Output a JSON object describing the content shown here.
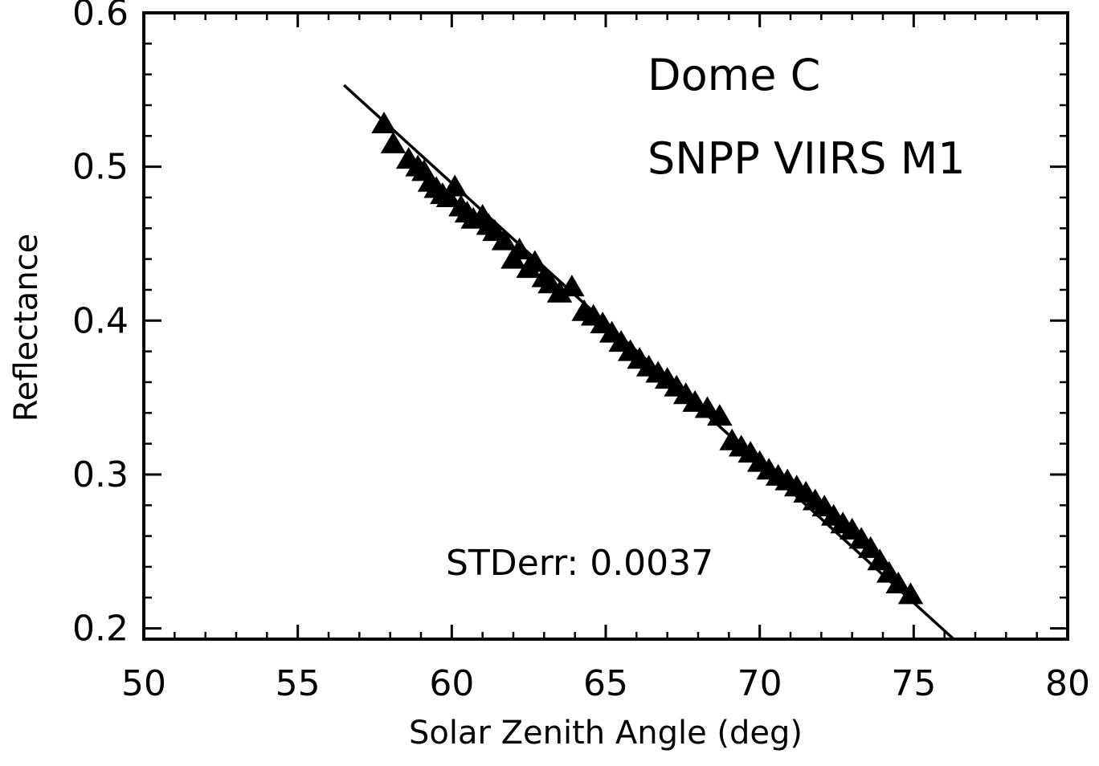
{
  "chart_data": {
    "type": "scatter",
    "xlabel": "Solar Zenith Angle (deg)",
    "ylabel": "Reflectance",
    "xlim": [
      50,
      80
    ],
    "ylim": [
      0.193,
      0.6
    ],
    "x_ticks": [
      50,
      55,
      60,
      65,
      70,
      75,
      80
    ],
    "x_tick_labels": [
      "50",
      "55",
      "60",
      "65",
      "70",
      "75",
      "80"
    ],
    "y_ticks": [
      0.2,
      0.3,
      0.4,
      0.5,
      0.6
    ],
    "y_tick_labels": [
      "0.2",
      "0.3",
      "0.4",
      "0.5",
      "0.6"
    ],
    "grid": false,
    "annotations": {
      "site": "Dome C",
      "sensor": "SNPP VIIRS M1",
      "stderr": "STDerr: 0.0037"
    },
    "series": [
      {
        "marker": "triangle",
        "color": "#000000",
        "x": [
          57.8,
          58.1,
          58.6,
          58.9,
          59.1,
          59.3,
          59.5,
          59.7,
          59.9,
          60.1,
          60.3,
          60.5,
          60.7,
          61.0,
          61.2,
          61.4,
          61.7,
          62.0,
          62.2,
          62.5,
          62.7,
          63.0,
          63.2,
          63.5,
          63.9,
          64.3,
          64.6,
          64.9,
          65.2,
          65.5,
          65.8,
          66.1,
          66.4,
          66.7,
          67.0,
          67.3,
          67.6,
          67.9,
          68.3,
          68.7,
          69.1,
          69.4,
          69.7,
          70.0,
          70.3,
          70.6,
          70.9,
          71.2,
          71.5,
          71.8,
          72.1,
          72.4,
          72.7,
          73.0,
          73.3,
          73.6,
          73.9,
          74.2,
          74.5,
          74.9
        ],
        "y": [
          0.528,
          0.515,
          0.505,
          0.5,
          0.497,
          0.49,
          0.486,
          0.482,
          0.48,
          0.487,
          0.474,
          0.47,
          0.466,
          0.468,
          0.462,
          0.458,
          0.452,
          0.44,
          0.446,
          0.434,
          0.438,
          0.428,
          0.424,
          0.418,
          0.422,
          0.406,
          0.403,
          0.398,
          0.392,
          0.386,
          0.38,
          0.375,
          0.37,
          0.366,
          0.362,
          0.357,
          0.352,
          0.347,
          0.343,
          0.338,
          0.322,
          0.318,
          0.314,
          0.308,
          0.303,
          0.299,
          0.296,
          0.292,
          0.288,
          0.283,
          0.279,
          0.273,
          0.268,
          0.264,
          0.258,
          0.252,
          0.244,
          0.236,
          0.229,
          0.222
        ]
      }
    ],
    "fit_line": {
      "x": [
        56.5,
        76.3
      ],
      "y": [
        0.553,
        0.193
      ]
    }
  }
}
